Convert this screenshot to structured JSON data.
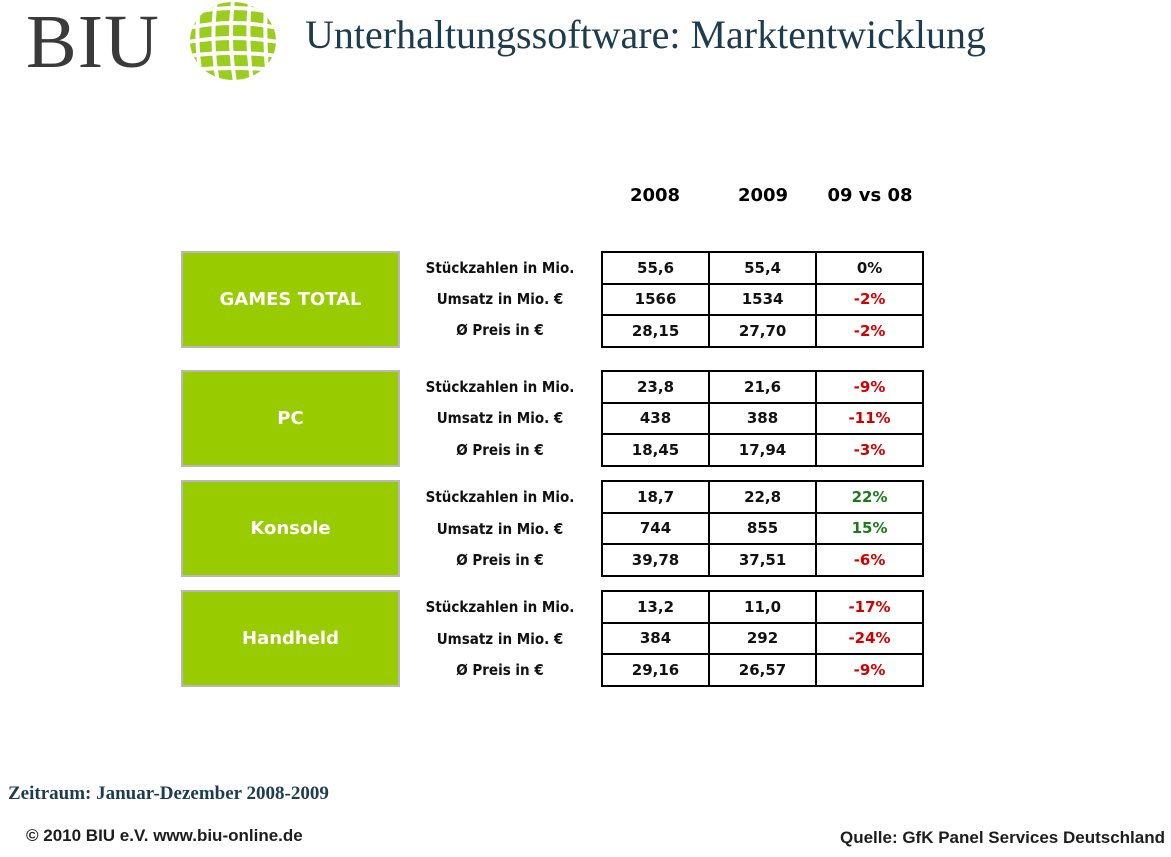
{
  "header": {
    "logo_text": "BIU",
    "title": "Unterhaltungssoftware: Marktentwicklung"
  },
  "columns": [
    "2008",
    "2009",
    "09 vs 08"
  ],
  "metric_labels": [
    "Stückzahlen in Mio.",
    "Umsatz in Mio. €",
    "Ø Preis in €"
  ],
  "categories": [
    {
      "name": "GAMES TOTAL",
      "rows": [
        {
          "v2008": "55,6",
          "v2009": "55,4",
          "change": "0%",
          "trend": "neutral"
        },
        {
          "v2008": "1566",
          "v2009": "1534",
          "change": "-2%",
          "trend": "negative"
        },
        {
          "v2008": "28,15",
          "v2009": "27,70",
          "change": "-2%",
          "trend": "negative"
        }
      ]
    },
    {
      "name": "PC",
      "rows": [
        {
          "v2008": "23,8",
          "v2009": "21,6",
          "change": "-9%",
          "trend": "negative"
        },
        {
          "v2008": "438",
          "v2009": "388",
          "change": "-11%",
          "trend": "negative"
        },
        {
          "v2008": "18,45",
          "v2009": "17,94",
          "change": "-3%",
          "trend": "negative"
        }
      ]
    },
    {
      "name": "Konsole",
      "rows": [
        {
          "v2008": "18,7",
          "v2009": "22,8",
          "change": "22%",
          "trend": "positive"
        },
        {
          "v2008": "744",
          "v2009": "855",
          "change": "15%",
          "trend": "positive"
        },
        {
          "v2008": "39,78",
          "v2009": "37,51",
          "change": "-6%",
          "trend": "negative"
        }
      ]
    },
    {
      "name": "Handheld",
      "rows": [
        {
          "v2008": "13,2",
          "v2009": "11,0",
          "change": "-17%",
          "trend": "negative"
        },
        {
          "v2008": "384",
          "v2009": "292",
          "change": "-24%",
          "trend": "negative"
        },
        {
          "v2008": "29,16",
          "v2009": "26,57",
          "change": "-9%",
          "trend": "negative"
        }
      ]
    }
  ],
  "colors": {
    "category_fill": "#99cc00",
    "negative": "#d40000",
    "positive": "#1a7a1a",
    "title": "#1d3c4e"
  },
  "footer": {
    "period": "Zeitraum: Januar-Dezember 2008-2009",
    "copyright": "© 2010 BIU e.V.  www.biu-online.de",
    "source": "Quelle: GfK Panel Services Deutschland"
  },
  "icons": {
    "logo": "biu-globe-icon"
  }
}
